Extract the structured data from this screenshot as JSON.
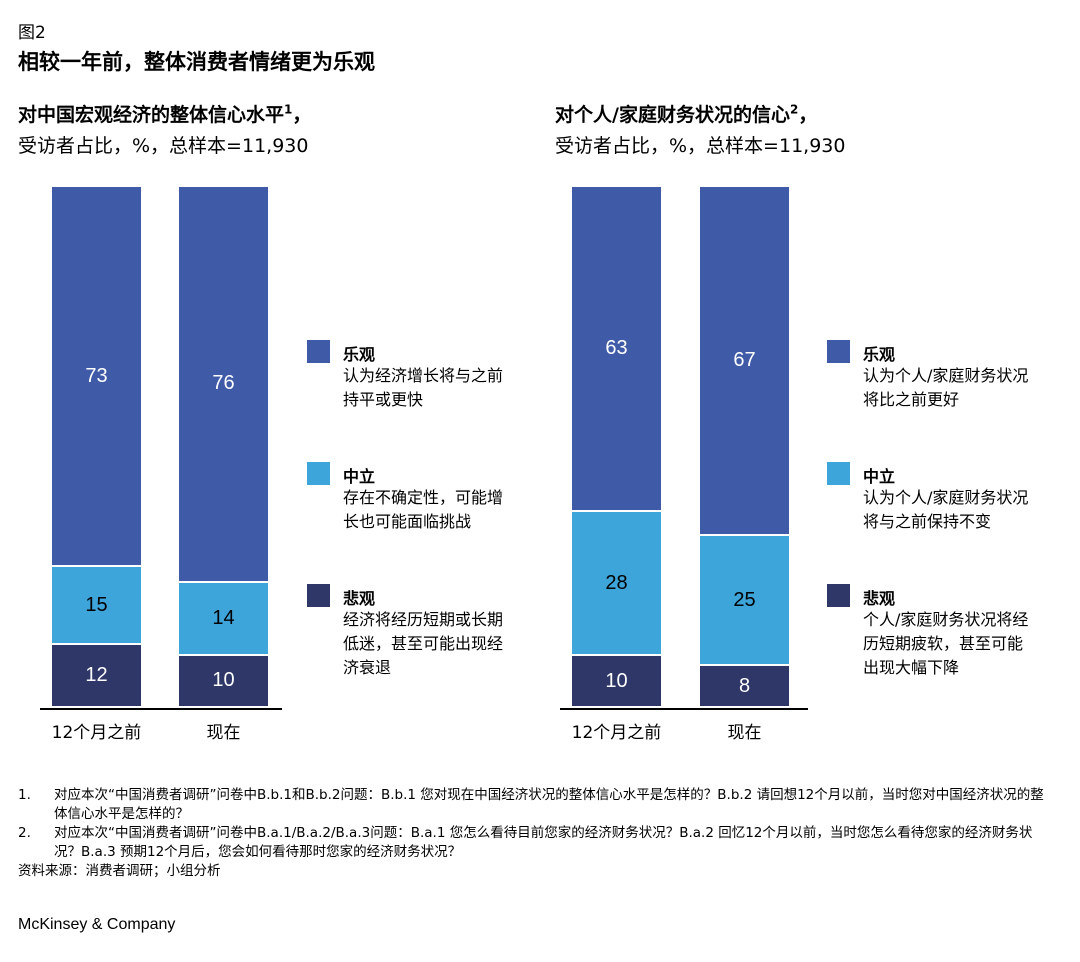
{
  "figure_label": "图2",
  "title": "相较一年前，整体消费者情绪更为乐观",
  "colors": {
    "optimistic": "#3f5ba7",
    "neutral": "#3ea5db",
    "pessimistic": "#2f3769"
  },
  "chart_data": [
    {
      "type": "bar",
      "stacked": true,
      "title": "对中国宏观经济的整体信心水平",
      "title_sup": "1",
      "title_suffix": "，",
      "subtitle": "受访者占比，%，总样本=11,930",
      "categories": [
        "12个月之前",
        "现在"
      ],
      "series": [
        {
          "name": "悲观",
          "values": [
            12,
            10
          ]
        },
        {
          "name": "中立",
          "values": [
            15,
            14
          ]
        },
        {
          "name": "乐观",
          "values": [
            73,
            76
          ]
        }
      ],
      "legend": [
        {
          "name": "乐观",
          "desc": "认为经济增长将与之前持平或更快"
        },
        {
          "name": "中立",
          "desc": "存在不确定性，可能增长也可能面临挑战"
        },
        {
          "name": "悲观",
          "desc": "经济将经历短期或长期低迷，甚至可能出现经济衰退"
        }
      ],
      "legend_position": "right"
    },
    {
      "type": "bar",
      "stacked": true,
      "title": "对个人/家庭财务状况的信心",
      "title_sup": "2",
      "title_suffix": "，",
      "subtitle": "受访者占比，%，总样本=11,930",
      "categories": [
        "12个月之前",
        "现在"
      ],
      "series": [
        {
          "name": "悲观",
          "values": [
            10,
            8
          ]
        },
        {
          "name": "中立",
          "values": [
            28,
            25
          ]
        },
        {
          "name": "乐观",
          "values": [
            63,
            67
          ]
        }
      ],
      "legend": [
        {
          "name": "乐观",
          "desc": "认为个人/家庭财务状况将比之前更好"
        },
        {
          "name": "中立",
          "desc": "认为个人/家庭财务状况将与之前保持不变"
        },
        {
          "name": "悲观",
          "desc": "个人/家庭财务状况将经历短期疲软，甚至可能出现大幅下降"
        }
      ],
      "legend_position": "right"
    }
  ],
  "footnotes": [
    {
      "num": "1.",
      "text": "对应本次“中国消费者调研”问卷中B.b.1和B.b.2问题：B.b.1 您对现在中国经济状况的整体信心水平是怎样的？B.b.2 请回想12个月以前，当时您对中国经济状况的整体信心水平是怎样的？"
    },
    {
      "num": "2.",
      "text": "对应本次“中国消费者调研”问卷中B.a.1/B.a.2/B.a.3问题：B.a.1 您怎么看待目前您家的经济财务状况？B.a.2 回忆12个月以前，当时您怎么看待您家的经济财务状况？B.a.3 预期12个月后，您会如何看待那时您家的经济财务状况？"
    }
  ],
  "source": "资料来源：消费者调研；小组分析",
  "brand": "McKinsey & Company"
}
